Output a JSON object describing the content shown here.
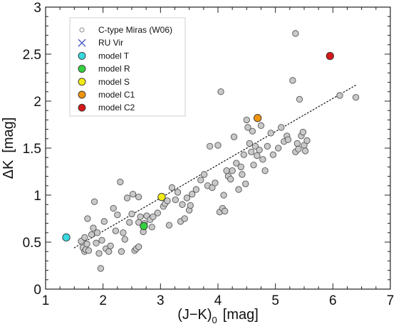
{
  "chart_data": {
    "type": "scatter",
    "title": "",
    "xlabel": "(J−K)",
    "xlabel_subscript": "0",
    "xlabel_unit": "[mag]",
    "ylabel": "ΔK",
    "ylabel_unit": "[mag]",
    "xlim": [
      1,
      7
    ],
    "ylim": [
      0,
      3
    ],
    "xticks": [
      "1",
      "2",
      "3",
      "4",
      "5",
      "6",
      "7"
    ],
    "yticks": [
      "0",
      "0.5",
      "1",
      "1.5",
      "2",
      "2.5",
      "3"
    ],
    "x_minor_step": 0.25,
    "y_minor_step": 0.1,
    "grid": false,
    "legend_position": "top-left",
    "legend": [
      {
        "label": "C-type Miras (W06)",
        "marker": "circle-open",
        "color": "#8c8c8c"
      },
      {
        "label": "RU Vir",
        "marker": "x",
        "color": "#4a5ec6"
      },
      {
        "label": "model T",
        "marker": "circle",
        "color": "#39d8e0"
      },
      {
        "label": "model R",
        "marker": "circle",
        "color": "#34d13e"
      },
      {
        "label": "model S",
        "marker": "circle",
        "color": "#f2ea16"
      },
      {
        "label": "model C1",
        "marker": "circle",
        "color": "#f0940f"
      },
      {
        "label": "model C2",
        "marker": "circle",
        "color": "#d41818"
      }
    ],
    "trend_line": {
      "style": "dotted",
      "x": [
        1.5,
        6.4
      ],
      "y": [
        0.44,
        2.17
      ]
    },
    "series": [
      {
        "name": "C-type Miras (W06)",
        "color": "#c9c9c9",
        "stroke": "#555555",
        "points": [
          [
            1.62,
            0.51
          ],
          [
            1.65,
            0.44
          ],
          [
            1.68,
            0.4
          ],
          [
            1.7,
            0.42
          ],
          [
            1.72,
            0.48
          ],
          [
            1.75,
            0.41
          ],
          [
            1.68,
            0.55
          ],
          [
            1.73,
            0.75
          ],
          [
            1.8,
            0.58
          ],
          [
            1.83,
            0.65
          ],
          [
            1.85,
            0.93
          ],
          [
            1.88,
            0.49
          ],
          [
            1.9,
            0.6
          ],
          [
            1.93,
            0.38
          ],
          [
            1.96,
            0.22
          ],
          [
            1.98,
            0.52
          ],
          [
            2.02,
            0.72
          ],
          [
            2.05,
            0.43
          ],
          [
            2.1,
            0.4
          ],
          [
            2.13,
            0.46
          ],
          [
            2.18,
            0.86
          ],
          [
            2.22,
            0.62
          ],
          [
            2.25,
            0.79
          ],
          [
            2.3,
            1.14
          ],
          [
            2.32,
            0.4
          ],
          [
            2.35,
            0.6
          ],
          [
            2.38,
            0.53
          ],
          [
            2.42,
            0.97
          ],
          [
            2.46,
            0.71
          ],
          [
            2.5,
            0.8
          ],
          [
            2.52,
            1.01
          ],
          [
            2.55,
            0.41
          ],
          [
            2.58,
            0.43
          ],
          [
            2.62,
            0.45
          ],
          [
            2.62,
            0.71
          ],
          [
            2.65,
            0.77
          ],
          [
            2.62,
            0.98
          ],
          [
            2.7,
            0.61
          ],
          [
            2.72,
            0.7
          ],
          [
            2.76,
            0.78
          ],
          [
            2.82,
            0.74
          ],
          [
            2.85,
            0.66
          ],
          [
            2.87,
            0.77
          ],
          [
            2.95,
            0.81
          ],
          [
            3.05,
            0.88
          ],
          [
            3.08,
            0.91
          ],
          [
            3.12,
            0.94
          ],
          [
            3.15,
            0.68
          ],
          [
            3.2,
            1.08
          ],
          [
            3.26,
            0.95
          ],
          [
            3.3,
            1.03
          ],
          [
            3.35,
            0.72
          ],
          [
            3.38,
            0.9
          ],
          [
            3.42,
            0.75
          ],
          [
            3.46,
            0.97
          ],
          [
            3.5,
            0.84
          ],
          [
            3.52,
            0.89
          ],
          [
            3.55,
            1.01
          ],
          [
            3.62,
            1.06
          ],
          [
            3.7,
            1.16
          ],
          [
            3.76,
            1.22
          ],
          [
            3.82,
            1.1
          ],
          [
            3.86,
            1.52
          ],
          [
            3.9,
            1.08
          ],
          [
            3.95,
            1.13
          ],
          [
            4.0,
            1.53
          ],
          [
            4.03,
            0.82
          ],
          [
            4.05,
            2.1
          ],
          [
            4.08,
            0.86
          ],
          [
            4.1,
            1.0
          ],
          [
            4.12,
            0.83
          ],
          [
            4.15,
            1.26
          ],
          [
            4.18,
            1.2
          ],
          [
            4.22,
            1.17
          ],
          [
            4.25,
            1.26
          ],
          [
            4.28,
            1.62
          ],
          [
            4.32,
            1.34
          ],
          [
            4.36,
            1.06
          ],
          [
            4.4,
            1.3
          ],
          [
            4.42,
            1.22
          ],
          [
            4.45,
            1.43
          ],
          [
            4.48,
            1.12
          ],
          [
            4.5,
            1.8
          ],
          [
            4.52,
            1.72
          ],
          [
            4.55,
            1.55
          ],
          [
            4.58,
            1.46
          ],
          [
            4.6,
            1.68
          ],
          [
            4.62,
            1.32
          ],
          [
            4.65,
            1.52
          ],
          [
            4.68,
            1.42
          ],
          [
            4.72,
            1.48
          ],
          [
            4.75,
            1.74
          ],
          [
            4.78,
            1.38
          ],
          [
            4.82,
            1.26
          ],
          [
            4.86,
            1.52
          ],
          [
            4.92,
            1.66
          ],
          [
            4.96,
            1.43
          ],
          [
            5.05,
            1.5
          ],
          [
            5.1,
            1.72
          ],
          [
            5.15,
            1.57
          ],
          [
            5.2,
            1.63
          ],
          [
            5.22,
            1.59
          ],
          [
            5.3,
            2.22
          ],
          [
            5.35,
            1.46
          ],
          [
            5.38,
            1.55
          ],
          [
            5.4,
            1.49
          ],
          [
            5.45,
            1.63
          ],
          [
            5.48,
            1.67
          ],
          [
            5.5,
            1.53
          ],
          [
            5.52,
            1.47
          ],
          [
            5.55,
            1.58
          ],
          [
            5.35,
            2.72
          ],
          [
            5.42,
            2.02
          ],
          [
            6.12,
            2.06
          ],
          [
            6.4,
            2.04
          ]
        ]
      },
      {
        "name": "model T",
        "color": "#39d8e0",
        "stroke": "#333333",
        "points": [
          [
            1.36,
            0.55
          ]
        ]
      },
      {
        "name": "model R",
        "color": "#34d13e",
        "stroke": "#333333",
        "points": [
          [
            2.71,
            0.67
          ]
        ]
      },
      {
        "name": "model S",
        "color": "#f2ea16",
        "stroke": "#333333",
        "points": [
          [
            3.02,
            0.98
          ]
        ]
      },
      {
        "name": "model C1",
        "color": "#f0940f",
        "stroke": "#333333",
        "points": [
          [
            4.69,
            1.82
          ]
        ]
      },
      {
        "name": "model C2",
        "color": "#d41818",
        "stroke": "#333333",
        "points": [
          [
            5.95,
            2.48
          ]
        ]
      }
    ]
  }
}
